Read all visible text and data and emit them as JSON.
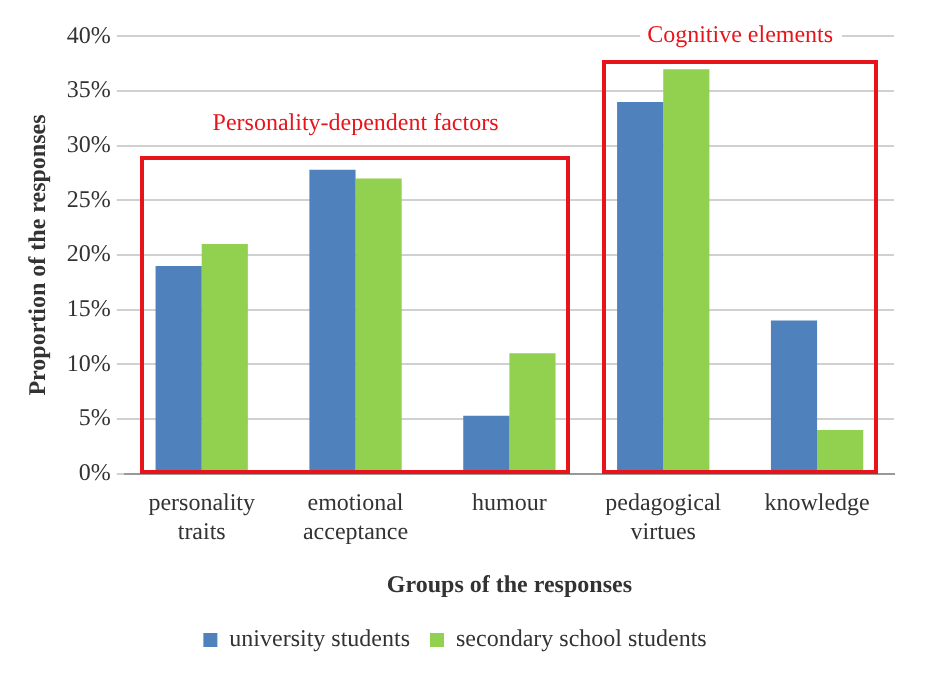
{
  "chart_data": {
    "type": "bar",
    "xlabel": "Groups of the responses",
    "ylabel": "Proportion of the responses",
    "categories": [
      "personality traits",
      "emotional acceptance",
      "humour",
      "pedagogical virtues",
      "knowledge"
    ],
    "series": [
      {
        "name": "university students",
        "color": "#4f81bd",
        "values": [
          19,
          27.8,
          5.3,
          34,
          14
        ]
      },
      {
        "name": "secondary school students",
        "color": "#92d050",
        "values": [
          21,
          27,
          11,
          37,
          4
        ]
      }
    ],
    "ylim": [
      0,
      40
    ],
    "yticks": [
      {
        "value": 0,
        "label": "0%"
      },
      {
        "value": 5,
        "label": "5%"
      },
      {
        "value": 10,
        "label": "10%"
      },
      {
        "value": 15,
        "label": "15%"
      },
      {
        "value": 20,
        "label": "20%"
      },
      {
        "value": 25,
        "label": "25%"
      },
      {
        "value": 30,
        "label": "30%"
      },
      {
        "value": 35,
        "label": "35%"
      },
      {
        "value": 40,
        "label": "40%"
      }
    ],
    "grid": "y",
    "legend": "bottom",
    "annotations": [
      "Personality-dependent factors",
      "Cognitive elements"
    ]
  }
}
